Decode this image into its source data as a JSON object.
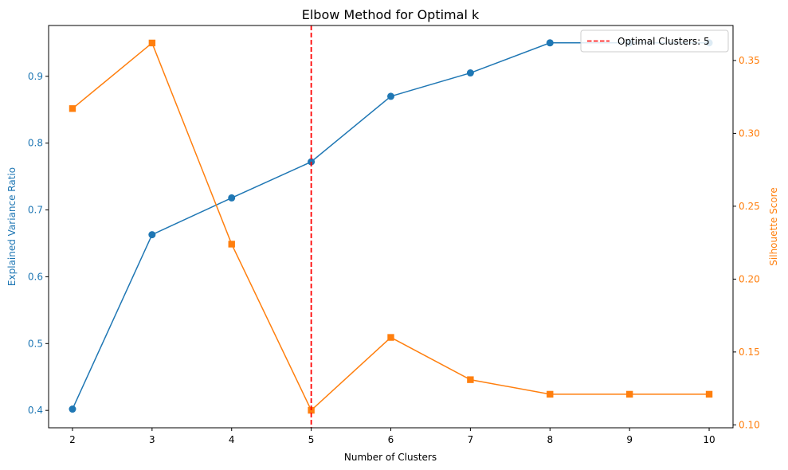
{
  "chart_data": {
    "type": "line",
    "title": "Elbow Method for Optimal k",
    "xlabel": "Number of Clusters",
    "ylabel_left": "Explained Variance Ratio",
    "ylabel_right": "Silhouette Score",
    "x": [
      2,
      3,
      4,
      5,
      6,
      7,
      8,
      9,
      10
    ],
    "xlim": [
      1.7,
      10.3
    ],
    "x_ticks": [
      "2",
      "3",
      "4",
      "5",
      "6",
      "7",
      "8",
      "9",
      "10"
    ],
    "ylim_left": [
      0.374,
      0.976
    ],
    "ylim_right": [
      0.098,
      0.374
    ],
    "y_ticks_left": [
      "0.4",
      "0.5",
      "0.6",
      "0.7",
      "0.8",
      "0.9"
    ],
    "y_ticks_right": [
      "0.10",
      "0.15",
      "0.20",
      "0.25",
      "0.30",
      "0.35"
    ],
    "series": [
      {
        "axis": "left",
        "marker": "circle",
        "color": "#1f77b4",
        "values": [
          0.402,
          0.663,
          0.718,
          0.772,
          0.87,
          0.905,
          0.95,
          0.95,
          0.95
        ]
      },
      {
        "axis": "right",
        "marker": "square",
        "color": "#ff7f0e",
        "values": [
          0.317,
          0.362,
          0.224,
          0.11,
          0.16,
          0.131,
          0.121,
          0.121,
          0.121
        ]
      }
    ],
    "vline": {
      "x": 5,
      "color": "#ff0000",
      "style": "dashed",
      "label": "Optimal Clusters: 5"
    },
    "legend_position": "top-right",
    "grid": false
  }
}
